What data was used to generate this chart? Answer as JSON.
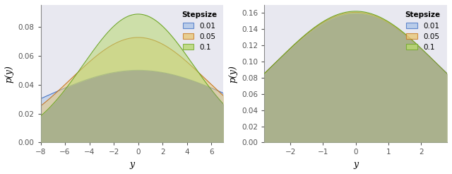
{
  "left_plot": {
    "xlim": [
      -8,
      7
    ],
    "ylim": [
      0,
      0.095
    ],
    "yticks": [
      0.0,
      0.02,
      0.04,
      0.06,
      0.08
    ],
    "xticks": [
      -8,
      -6,
      -4,
      -2,
      0,
      2,
      4,
      6
    ],
    "xlabel": "y",
    "ylabel": "p(y)",
    "distributions": [
      {
        "stepsize": "0.01",
        "mean": 0,
        "std": 8.0,
        "color_fill": "#aec6e8",
        "color_line": "#4472c4",
        "alpha": 0.55,
        "zorder": 1
      },
      {
        "stepsize": "0.05",
        "mean": 0,
        "std": 5.5,
        "color_fill": "#e8c87a",
        "color_line": "#c87820",
        "alpha": 0.55,
        "zorder": 2
      },
      {
        "stepsize": "0.1",
        "mean": 0,
        "std": 4.5,
        "color_fill": "#b8d870",
        "color_line": "#70a828",
        "alpha": 0.55,
        "zorder": 3
      }
    ],
    "legend_title": "Stepsize",
    "legend_labels": [
      "0.01",
      "0.05",
      "0.1"
    ]
  },
  "right_plot": {
    "xlim": [
      -2.8,
      2.8
    ],
    "ylim": [
      0,
      0.17
    ],
    "yticks": [
      0.0,
      0.02,
      0.04,
      0.06,
      0.08,
      0.1,
      0.12,
      0.14,
      0.16
    ],
    "xticks": [
      -2,
      -1,
      0,
      1,
      2
    ],
    "xlabel": "y",
    "ylabel": "p(y)",
    "distributions": [
      {
        "stepsize": "0.01",
        "mean": 0,
        "std": 2.5,
        "color_fill": "#aec6e8",
        "color_line": "#4472c4",
        "alpha": 0.55,
        "zorder": 1
      },
      {
        "stepsize": "0.05",
        "mean": 0,
        "std": 2.48,
        "color_fill": "#e8c87a",
        "color_line": "#c87820",
        "alpha": 0.55,
        "zorder": 2
      },
      {
        "stepsize": "0.1",
        "mean": 0,
        "std": 2.46,
        "color_fill": "#b8d870",
        "color_line": "#70a828",
        "alpha": 0.55,
        "zorder": 3
      }
    ],
    "legend_title": "Stepsize",
    "legend_labels": [
      "0.01",
      "0.05",
      "0.1"
    ]
  },
  "ax_background": "#e8e8f0",
  "fig_background": "#ffffff",
  "font_family": "DejaVu Serif",
  "label_fontsize": 9,
  "tick_fontsize": 7.5,
  "legend_fontsize": 7.5,
  "spine_color": "#888888",
  "gray_fill": "#909090"
}
